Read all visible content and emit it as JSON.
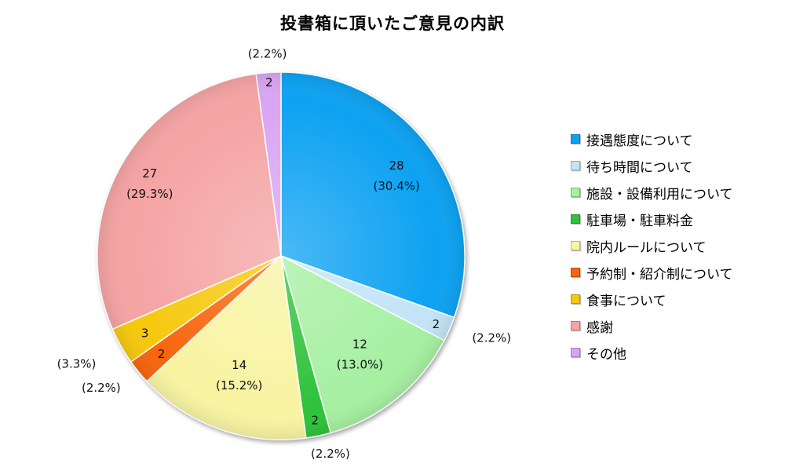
{
  "chart_data": {
    "type": "pie",
    "title": "投書箱に頂いたご意見の内訳",
    "categories": [
      "接遇態度について",
      "待ち時間について",
      "施設・設備利用について",
      "駐車場・駐車料金",
      "院内ルールについて",
      "予約制・紹介制について",
      "食事について",
      "感謝",
      "その他"
    ],
    "values": [
      28,
      2,
      12,
      2,
      14,
      2,
      3,
      27,
      2
    ],
    "percent_labels": [
      "(30.4%)",
      "(2.2%)",
      "(13.0%)",
      "(2.2%)",
      "(15.2%)",
      "(2.2%)",
      "(3.3%)",
      "(29.3%)",
      "(2.2%)"
    ],
    "colors": [
      "#0aa2f2",
      "#c2e4f6",
      "#a6f0a2",
      "#2fc23a",
      "#f8f4a2",
      "#f7650c",
      "#f6c80a",
      "#f5a3a3",
      "#d9a5f3"
    ],
    "legend_position": "right"
  }
}
